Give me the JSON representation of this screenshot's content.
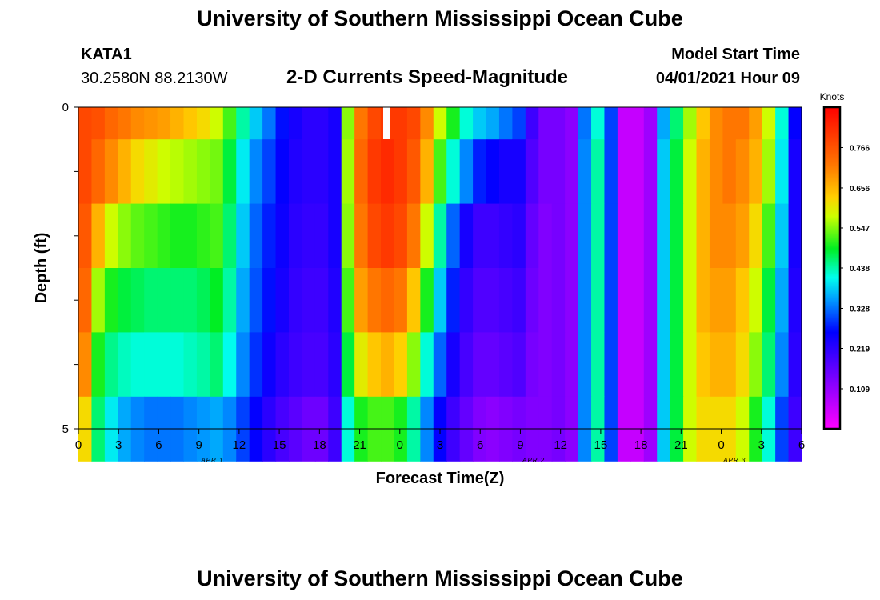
{
  "header": {
    "title": "University of Southern Mississippi Ocean Cube",
    "station_id": "KATA1",
    "coords": "30.2580N  88.2130W",
    "product": "2-D Currents Speed-Magnitude",
    "model_label": "Model Start Time",
    "model_time": "04/01/2021 Hour 09"
  },
  "footer": {
    "title": "University of Southern Mississippi Ocean Cube"
  },
  "chart_data": {
    "type": "heatmap",
    "title": "2-D Currents Speed-Magnitude",
    "xlabel": "Forecast Time(Z)",
    "ylabel": "Depth (ft)",
    "x_ticks": [
      "0",
      "3",
      "6",
      "9",
      "12",
      "15",
      "18",
      "21",
      "0",
      "3",
      "6",
      "9",
      "12",
      "15",
      "18",
      "21",
      "0",
      "3",
      "6"
    ],
    "y_ticks": [
      "0",
      "5"
    ],
    "date_labels": [
      {
        "label": "APR 1",
        "at_hour": 10
      },
      {
        "label": "APR 2",
        "at_hour": 34
      },
      {
        "label": "APR 3",
        "at_hour": 49
      }
    ],
    "x_range_hours": [
      0,
      54
    ],
    "y_range_ft": [
      0,
      5
    ],
    "depth_levels": 5,
    "colorbar": {
      "unit": "Knots",
      "min": 0.0,
      "max": 0.876,
      "tick_values": [
        0.766,
        0.656,
        0.547,
        0.438,
        0.328,
        0.219,
        0.109
      ],
      "tick_labels": [
        "0.766",
        "0.656",
        "0.547",
        "0.438",
        "0.328",
        "0.219",
        "0.109"
      ]
    },
    "speed_knots_by_depth": [
      [
        0.78,
        0.77,
        0.74,
        0.72,
        0.7,
        0.69,
        0.68,
        0.66,
        0.64,
        0.62,
        0.58,
        0.52,
        0.44,
        0.38,
        0.33,
        0.27,
        0.24,
        0.22,
        0.22,
        0.24,
        0.55,
        0.72,
        0.78,
        0.8,
        0.8,
        0.78,
        0.7,
        0.58,
        0.5,
        0.42,
        0.38,
        0.36,
        0.33,
        0.3,
        0.2,
        0.14,
        0.14,
        0.12,
        0.33,
        0.42,
        0.3,
        0.06,
        0.06,
        0.1,
        0.36,
        0.46,
        0.56,
        0.64,
        0.7,
        0.72,
        0.72,
        0.68,
        0.58,
        0.42,
        0.26
      ],
      [
        0.78,
        0.74,
        0.7,
        0.66,
        0.62,
        0.6,
        0.58,
        0.57,
        0.56,
        0.55,
        0.54,
        0.48,
        0.4,
        0.34,
        0.3,
        0.26,
        0.23,
        0.22,
        0.22,
        0.24,
        0.56,
        0.74,
        0.8,
        0.82,
        0.8,
        0.76,
        0.66,
        0.52,
        0.42,
        0.34,
        0.28,
        0.26,
        0.24,
        0.24,
        0.18,
        0.14,
        0.14,
        0.12,
        0.34,
        0.44,
        0.3,
        0.06,
        0.06,
        0.1,
        0.38,
        0.48,
        0.58,
        0.66,
        0.7,
        0.72,
        0.7,
        0.66,
        0.56,
        0.4,
        0.24
      ],
      [
        0.76,
        0.66,
        0.58,
        0.55,
        0.53,
        0.52,
        0.51,
        0.5,
        0.5,
        0.51,
        0.52,
        0.46,
        0.38,
        0.32,
        0.28,
        0.25,
        0.22,
        0.21,
        0.21,
        0.24,
        0.55,
        0.72,
        0.78,
        0.8,
        0.78,
        0.72,
        0.58,
        0.44,
        0.32,
        0.24,
        0.2,
        0.2,
        0.21,
        0.22,
        0.16,
        0.13,
        0.14,
        0.12,
        0.34,
        0.44,
        0.3,
        0.06,
        0.06,
        0.1,
        0.38,
        0.48,
        0.58,
        0.66,
        0.7,
        0.7,
        0.68,
        0.62,
        0.52,
        0.38,
        0.24
      ],
      [
        0.74,
        0.56,
        0.5,
        0.48,
        0.47,
        0.46,
        0.46,
        0.46,
        0.46,
        0.47,
        0.49,
        0.44,
        0.36,
        0.31,
        0.27,
        0.24,
        0.21,
        0.2,
        0.2,
        0.23,
        0.52,
        0.68,
        0.72,
        0.74,
        0.72,
        0.64,
        0.5,
        0.38,
        0.28,
        0.21,
        0.18,
        0.18,
        0.19,
        0.2,
        0.15,
        0.13,
        0.14,
        0.12,
        0.34,
        0.44,
        0.3,
        0.06,
        0.06,
        0.1,
        0.38,
        0.48,
        0.58,
        0.66,
        0.68,
        0.68,
        0.64,
        0.58,
        0.48,
        0.36,
        0.23
      ],
      [
        0.7,
        0.5,
        0.45,
        0.43,
        0.42,
        0.42,
        0.42,
        0.42,
        0.43,
        0.44,
        0.46,
        0.41,
        0.34,
        0.29,
        0.25,
        0.22,
        0.2,
        0.19,
        0.19,
        0.22,
        0.48,
        0.6,
        0.64,
        0.66,
        0.63,
        0.55,
        0.42,
        0.32,
        0.24,
        0.19,
        0.16,
        0.16,
        0.17,
        0.18,
        0.14,
        0.13,
        0.14,
        0.12,
        0.34,
        0.44,
        0.3,
        0.06,
        0.06,
        0.1,
        0.38,
        0.48,
        0.58,
        0.64,
        0.66,
        0.66,
        0.62,
        0.55,
        0.46,
        0.34,
        0.22
      ],
      [
        0.62,
        0.46,
        0.4,
        0.36,
        0.34,
        0.33,
        0.33,
        0.33,
        0.34,
        0.35,
        0.36,
        0.34,
        0.3,
        0.26,
        0.22,
        0.19,
        0.17,
        0.15,
        0.15,
        0.2,
        0.42,
        0.5,
        0.52,
        0.52,
        0.5,
        0.44,
        0.34,
        0.26,
        0.2,
        0.16,
        0.13,
        0.12,
        0.13,
        0.14,
        0.13,
        0.13,
        0.14,
        0.12,
        0.34,
        0.44,
        0.3,
        0.06,
        0.06,
        0.1,
        0.38,
        0.48,
        0.58,
        0.62,
        0.62,
        0.62,
        0.58,
        0.5,
        0.42,
        0.3,
        0.2
      ]
    ]
  }
}
